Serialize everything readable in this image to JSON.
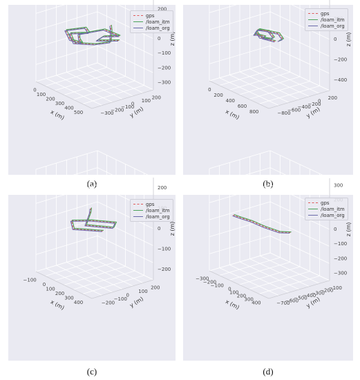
{
  "legend_labels": [
    "gps",
    "/loam_itm",
    "/loam_org"
  ],
  "series_colors": [
    "#e05a5a",
    "#4ca35b",
    "#6a6aaa"
  ],
  "captions": [
    "(a)",
    "(b)",
    "(c)",
    "(d)"
  ],
  "chart_data": [
    {
      "type": "line3d",
      "caption": "(a)",
      "series": [
        {
          "name": "gps"
        },
        {
          "name": "/loam_itm"
        },
        {
          "name": "/loam_org"
        }
      ],
      "xlabel": "x (m)",
      "ylabel": "y (m)",
      "zlabel": "z (m)",
      "xticks": [
        "0",
        "100",
        "200",
        "300",
        "400",
        "500"
      ],
      "yticks": [
        "−300",
        "−200",
        "−100",
        "0",
        "100",
        "200"
      ],
      "zticks": [
        "300",
        "200",
        "100",
        "0",
        "−100",
        "−200",
        "−300"
      ],
      "grid": true,
      "legend": "top-right"
    },
    {
      "type": "line3d",
      "caption": "(b)",
      "series": [
        {
          "name": "gps"
        },
        {
          "name": "/loam_itm"
        },
        {
          "name": "/loam_org"
        }
      ],
      "xlabel": "x (m)",
      "ylabel": "y (m)",
      "zlabel": "z (m)",
      "xticks": [
        "0",
        "200",
        "400",
        "600",
        "800"
      ],
      "yticks": [
        "−800",
        "−600",
        "−400",
        "−200",
        "0",
        "200"
      ],
      "zticks": [
        "400",
        "200",
        "0",
        "−200",
        "−400"
      ],
      "grid": true,
      "legend": "top-right"
    },
    {
      "type": "line3d",
      "caption": "(c)",
      "series": [
        {
          "name": "gps"
        },
        {
          "name": "/loam_itm"
        },
        {
          "name": "/loam_org"
        }
      ],
      "xlabel": "x (m)",
      "ylabel": "y (m)",
      "zlabel": "z (m)",
      "xticks": [
        "−100",
        "0",
        "100",
        "200",
        "300",
        "400"
      ],
      "yticks": [
        "−200",
        "−100",
        "0",
        "100",
        "200"
      ],
      "zticks": [
        "200",
        "100",
        "0",
        "−100",
        "−200"
      ],
      "grid": true,
      "legend": "top-right"
    },
    {
      "type": "line3d",
      "caption": "(d)",
      "series": [
        {
          "name": "gps"
        },
        {
          "name": "/loam_itm"
        },
        {
          "name": "/loam_org"
        }
      ],
      "xlabel": "x (m)",
      "ylabel": "y (m)",
      "zlabel": "z (m)",
      "xticks": [
        "−300",
        "−200",
        "−100",
        "0",
        "100",
        "200",
        "300",
        "400"
      ],
      "yticks": [
        "−700",
        "−600",
        "−500",
        "−400",
        "−300",
        "−200",
        "−100"
      ],
      "zticks": [
        "300",
        "200",
        "100",
        "0",
        "−100",
        "−200",
        "−300"
      ],
      "grid": true,
      "legend": "top-right"
    }
  ]
}
